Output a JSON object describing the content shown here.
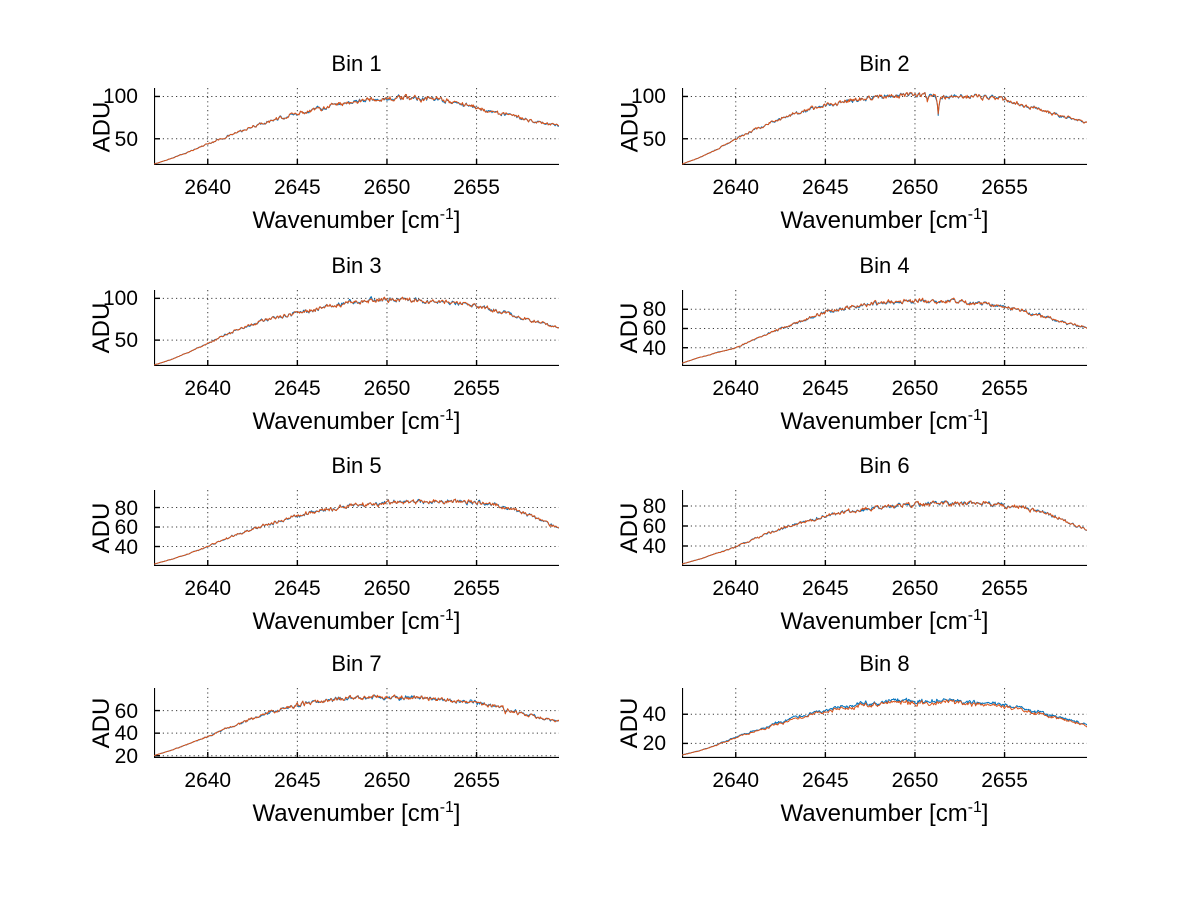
{
  "figure": {
    "background": "#ffffff",
    "ylabel": "ADU",
    "xlabel": {
      "text": "Wavenumber [cm^-1]",
      "main": "Wavenumber [cm",
      "sup": "-1",
      "end": "]"
    },
    "xticks": [
      2640,
      2645,
      2650,
      2655
    ],
    "xlim": [
      2637,
      2659.6
    ],
    "colors": {
      "trace_blue": "#0072BD",
      "trace_orange": "#D95319",
      "axis": "#000000",
      "grid": "#3c3c3c"
    }
  },
  "chart_data": [
    {
      "type": "line",
      "title": "Bin 1",
      "xlabel": "Wavenumber [cm^-1]",
      "ylabel": "ADU",
      "xlim": [
        2637,
        2659.6
      ],
      "ylim": [
        19,
        110
      ],
      "xticks": [
        2640,
        2645,
        2650,
        2655
      ],
      "yticks": [
        50,
        100
      ],
      "x_anchors": [
        2637,
        2638,
        2639,
        2640,
        2641,
        2642,
        2643,
        2644,
        2645,
        2646,
        2647,
        2648,
        2649,
        2650,
        2651,
        2652,
        2653,
        2654,
        2655,
        2656,
        2657,
        2658,
        2659,
        2659.6
      ],
      "envelope_adu": [
        20,
        27,
        35,
        44,
        52,
        60,
        68,
        74,
        80,
        85,
        90,
        93,
        96,
        97,
        98,
        98,
        96,
        92,
        87,
        81,
        77,
        72,
        67,
        65
      ],
      "series": [
        {
          "name": "trace-blue",
          "color": "#0072BD"
        },
        {
          "name": "trace-orange",
          "color": "#D95319"
        }
      ],
      "noise_amp": 2.2,
      "pair_spread": 1.0,
      "blue_offset": 0,
      "spikes": []
    },
    {
      "type": "line",
      "title": "Bin 2",
      "xlabel": "Wavenumber [cm^-1]",
      "ylabel": "ADU",
      "xlim": [
        2637,
        2659.6
      ],
      "ylim": [
        19,
        110
      ],
      "xticks": [
        2640,
        2645,
        2650,
        2655
      ],
      "yticks": [
        50,
        100
      ],
      "x_anchors": [
        2637,
        2638,
        2639,
        2640,
        2641,
        2642,
        2643,
        2644,
        2645,
        2646,
        2647,
        2648,
        2649,
        2650,
        2651,
        2652,
        2653,
        2654,
        2655,
        2656,
        2657,
        2658,
        2659,
        2659.6
      ],
      "envelope_adu": [
        20,
        28,
        38,
        50,
        60,
        70,
        78,
        84,
        90,
        94,
        98,
        100,
        101,
        101,
        101,
        100,
        100,
        99,
        97,
        90,
        84,
        78,
        72,
        69
      ],
      "series": [
        {
          "name": "trace-blue",
          "color": "#0072BD"
        },
        {
          "name": "trace-orange",
          "color": "#D95319"
        }
      ],
      "noise_amp": 2.2,
      "pair_spread": 1.0,
      "blue_offset": 0,
      "spikes": [
        {
          "x": 2650.7,
          "adu": 93
        },
        {
          "x": 2651.3,
          "adu": 80
        }
      ]
    },
    {
      "type": "line",
      "title": "Bin 3",
      "xlabel": "Wavenumber [cm^-1]",
      "ylabel": "ADU",
      "xlim": [
        2637,
        2659.6
      ],
      "ylim": [
        19,
        110
      ],
      "xticks": [
        2640,
        2645,
        2650,
        2655
      ],
      "yticks": [
        50,
        100
      ],
      "x_anchors": [
        2637,
        2638,
        2639,
        2640,
        2641,
        2642,
        2643,
        2644,
        2645,
        2646,
        2647,
        2648,
        2649,
        2650,
        2651,
        2652,
        2653,
        2654,
        2655,
        2656,
        2657,
        2658,
        2659,
        2659.6
      ],
      "envelope_adu": [
        20,
        27,
        36,
        46,
        56,
        65,
        73,
        78,
        82,
        87,
        92,
        95,
        97,
        98,
        98,
        97,
        96,
        94,
        91,
        86,
        80,
        74,
        68,
        65
      ],
      "series": [
        {
          "name": "trace-blue",
          "color": "#0072BD"
        },
        {
          "name": "trace-orange",
          "color": "#D95319"
        }
      ],
      "noise_amp": 2.2,
      "pair_spread": 1.0,
      "blue_offset": 0,
      "spikes": []
    },
    {
      "type": "line",
      "title": "Bin 4",
      "xlabel": "Wavenumber [cm^-1]",
      "ylabel": "ADU",
      "xlim": [
        2637,
        2659.6
      ],
      "ylim": [
        21,
        100
      ],
      "xticks": [
        2640,
        2645,
        2650,
        2655
      ],
      "yticks": [
        40,
        60,
        80
      ],
      "x_anchors": [
        2637,
        2638,
        2639,
        2640,
        2641,
        2642,
        2643,
        2644,
        2645,
        2646,
        2647,
        2648,
        2649,
        2650,
        2651,
        2652,
        2653,
        2654,
        2655,
        2656,
        2657,
        2658,
        2659,
        2659.6
      ],
      "envelope_adu": [
        24,
        30,
        35,
        40,
        48,
        56,
        63,
        70,
        77,
        81,
        84,
        86,
        88,
        89,
        88,
        88,
        87,
        85,
        82,
        78,
        73,
        68,
        63,
        61
      ],
      "series": [
        {
          "name": "trace-blue",
          "color": "#0072BD"
        },
        {
          "name": "trace-orange",
          "color": "#D95319"
        }
      ],
      "noise_amp": 1.7,
      "pair_spread": 0.8,
      "blue_offset": 0,
      "spikes": []
    },
    {
      "type": "line",
      "title": "Bin 5",
      "xlabel": "Wavenumber [cm^-1]",
      "ylabel": "ADU",
      "xlim": [
        2637,
        2659.6
      ],
      "ylim": [
        20,
        98
      ],
      "xticks": [
        2640,
        2645,
        2650,
        2655
      ],
      "yticks": [
        40,
        60,
        80
      ],
      "x_anchors": [
        2637,
        2638,
        2639,
        2640,
        2641,
        2642,
        2643,
        2644,
        2645,
        2646,
        2647,
        2648,
        2649,
        2650,
        2651,
        2652,
        2653,
        2654,
        2655,
        2656,
        2657,
        2658,
        2659,
        2659.6
      ],
      "envelope_adu": [
        22,
        27,
        33,
        40,
        48,
        55,
        61,
        66,
        72,
        76,
        79,
        82,
        84,
        85,
        86,
        86,
        86,
        86,
        85,
        83,
        78,
        72,
        63,
        59
      ],
      "series": [
        {
          "name": "trace-blue",
          "color": "#0072BD"
        },
        {
          "name": "trace-orange",
          "color": "#D95319"
        }
      ],
      "noise_amp": 1.7,
      "pair_spread": 0.8,
      "blue_offset": 0,
      "spikes": []
    },
    {
      "type": "line",
      "title": "Bin 6",
      "xlabel": "Wavenumber [cm^-1]",
      "ylabel": "ADU",
      "xlim": [
        2637,
        2659.6
      ],
      "ylim": [
        20,
        96
      ],
      "xticks": [
        2640,
        2645,
        2650,
        2655
      ],
      "yticks": [
        40,
        60,
        80
      ],
      "x_anchors": [
        2637,
        2638,
        2639,
        2640,
        2641,
        2642,
        2643,
        2644,
        2645,
        2646,
        2647,
        2648,
        2649,
        2650,
        2651,
        2652,
        2653,
        2654,
        2655,
        2656,
        2657,
        2658,
        2659,
        2659.6
      ],
      "envelope_adu": [
        22,
        27,
        33,
        39,
        47,
        54,
        60,
        65,
        70,
        74,
        77,
        79,
        81,
        82,
        83,
        83,
        83,
        82,
        81,
        79,
        74,
        68,
        60,
        56
      ],
      "series": [
        {
          "name": "trace-blue",
          "color": "#0072BD"
        },
        {
          "name": "trace-orange",
          "color": "#D95319"
        }
      ],
      "noise_amp": 1.7,
      "pair_spread": 0.8,
      "blue_offset": 0,
      "spikes": []
    },
    {
      "type": "line",
      "title": "Bin 7",
      "xlabel": "Wavenumber [cm^-1]",
      "ylabel": "ADU",
      "xlim": [
        2637,
        2659.6
      ],
      "ylim": [
        18,
        80
      ],
      "xticks": [
        2640,
        2645,
        2650,
        2655
      ],
      "yticks": [
        20,
        40,
        60
      ],
      "x_anchors": [
        2637,
        2638,
        2639,
        2640,
        2641,
        2642,
        2643,
        2644,
        2645,
        2646,
        2647,
        2648,
        2649,
        2650,
        2651,
        2652,
        2653,
        2654,
        2655,
        2656,
        2657,
        2658,
        2659,
        2659.6
      ],
      "envelope_adu": [
        20,
        25,
        31,
        37,
        44,
        50,
        56,
        61,
        65,
        68,
        70,
        71,
        72,
        72,
        72,
        71,
        70,
        68,
        67,
        64,
        60,
        56,
        52,
        50
      ],
      "series": [
        {
          "name": "trace-blue",
          "color": "#0072BD"
        },
        {
          "name": "trace-orange",
          "color": "#D95319"
        }
      ],
      "noise_amp": 1.5,
      "pair_spread": 0.8,
      "blue_offset": 0,
      "spikes": [
        {
          "x": 2656.6,
          "adu": 57
        },
        {
          "x": 2657.3,
          "adu": 55
        }
      ]
    },
    {
      "type": "line",
      "title": "Bin 8",
      "xlabel": "Wavenumber [cm^-1]",
      "ylabel": "ADU",
      "xlim": [
        2637,
        2659.6
      ],
      "ylim": [
        10,
        58
      ],
      "xticks": [
        2640,
        2645,
        2650,
        2655
      ],
      "yticks": [
        20,
        40
      ],
      "x_anchors": [
        2637,
        2638,
        2639,
        2640,
        2641,
        2642,
        2643,
        2644,
        2645,
        2646,
        2647,
        2648,
        2649,
        2650,
        2651,
        2652,
        2653,
        2654,
        2655,
        2656,
        2657,
        2658,
        2659,
        2659.6
      ],
      "envelope_adu": [
        12,
        15,
        19,
        24,
        28,
        32,
        36,
        39,
        42,
        44,
        46,
        47,
        48,
        48,
        48,
        48,
        47,
        46,
        45,
        43,
        40,
        37,
        34,
        32
      ],
      "series": [
        {
          "name": "trace-blue",
          "color": "#0072BD"
        },
        {
          "name": "trace-orange",
          "color": "#D95319"
        }
      ],
      "noise_amp": 1.1,
      "pair_spread": 0.6,
      "blue_offset": 1.3,
      "spikes": []
    }
  ]
}
